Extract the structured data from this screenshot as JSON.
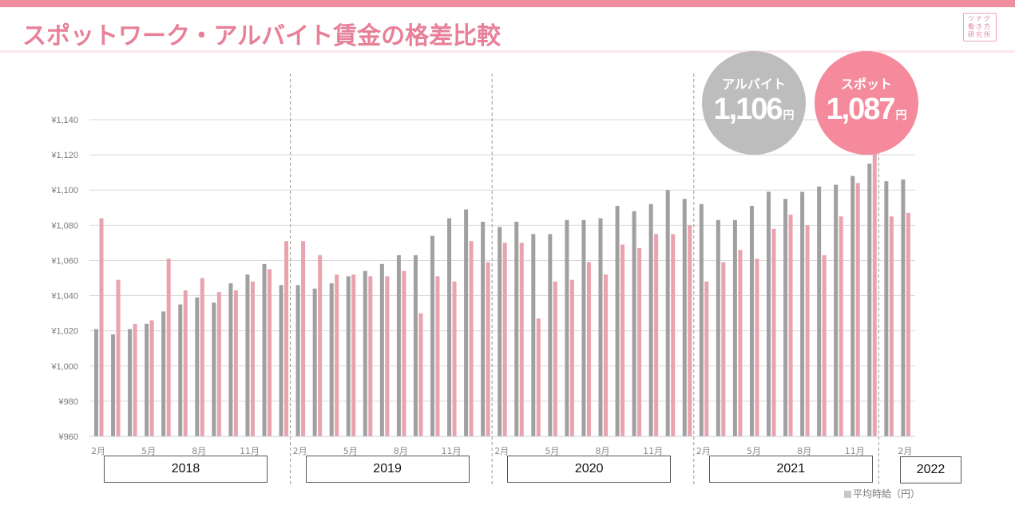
{
  "header": {
    "title": "スポットワーク・アルバイト賃金の格差比較",
    "logo_lines": [
      "ツナグ",
      "働き方",
      "研究所"
    ]
  },
  "colors": {
    "brand_pink": "#f08ea0",
    "arubaito_gray": "#a0a0a0",
    "spot_pink": "#e9a3ae",
    "bubble_gray": "#bdbdbd",
    "bubble_pink": "#f48a9c"
  },
  "callouts": {
    "arubaito": {
      "label": "アルバイト",
      "value": "1,106",
      "unit": "円"
    },
    "spot": {
      "label": "スポット",
      "value": "1,087",
      "unit": "円"
    }
  },
  "legend": {
    "label": "平均時給（円）"
  },
  "chart_data": {
    "type": "bar",
    "title": "スポットワーク・アルバイト賃金の格差比較",
    "xlabel": "",
    "ylabel": "平均時給（円）",
    "ylim": [
      960,
      1140
    ],
    "yticks": [
      "¥960",
      "¥980",
      "¥1,000",
      "¥1,020",
      "¥1,040",
      "¥1,060",
      "¥1,080",
      "¥1,100",
      "¥1,120",
      "¥1,140"
    ],
    "grid": true,
    "year_groups": [
      {
        "label": "2018",
        "count": 12,
        "tick_labels": [
          "2月",
          "5月",
          "8月",
          "11月"
        ]
      },
      {
        "label": "2019",
        "count": 12,
        "tick_labels": [
          "2月",
          "5月",
          "8月",
          "11月"
        ]
      },
      {
        "label": "2020",
        "count": 12,
        "tick_labels": [
          "2月",
          "5月",
          "8月",
          "11月"
        ]
      },
      {
        "label": "2021",
        "count": 11,
        "tick_labels": [
          "2月",
          "5月",
          "8月",
          "11月"
        ]
      },
      {
        "label": "2022",
        "count": 2,
        "tick_labels": [
          "2月"
        ]
      }
    ],
    "categories": [
      "2018-02",
      "2018-03",
      "2018-04",
      "2018-05",
      "2018-06",
      "2018-07",
      "2018-08",
      "2018-09",
      "2018-10",
      "2018-11",
      "2018-12",
      "2019-01",
      "2019-02",
      "2019-03",
      "2019-04",
      "2019-05",
      "2019-06",
      "2019-07",
      "2019-08",
      "2019-09",
      "2019-10",
      "2019-11",
      "2019-12",
      "2020-01",
      "2020-02",
      "2020-03",
      "2020-04",
      "2020-05",
      "2020-06",
      "2020-07",
      "2020-08",
      "2020-09",
      "2020-10",
      "2020-11",
      "2020-12",
      "2021-01",
      "2021-02",
      "2021-03",
      "2021-04",
      "2021-05",
      "2021-06",
      "2021-07",
      "2021-08",
      "2021-09",
      "2021-10",
      "2021-11",
      "2021-12",
      "2022-01",
      "2022-02"
    ],
    "series": [
      {
        "name": "アルバイト",
        "color": "#a0a0a0",
        "values": [
          1021,
          1018,
          1021,
          1024,
          1031,
          1035,
          1039,
          1036,
          1047,
          1052,
          1058,
          1046,
          1046,
          1044,
          1047,
          1051,
          1054,
          1058,
          1063,
          1063,
          1074,
          1084,
          1089,
          1082,
          1079,
          1082,
          1075,
          1075,
          1083,
          1083,
          1084,
          1091,
          1088,
          1092,
          1100,
          1095,
          1092,
          1083,
          1083,
          1091,
          1099,
          1095,
          1099,
          1102,
          1103,
          1108,
          1115,
          1105,
          1106
        ]
      },
      {
        "name": "スポット",
        "color": "#e9a3ae",
        "values": [
          1084,
          1049,
          1024,
          1026,
          1061,
          1043,
          1050,
          1042,
          1043,
          1048,
          1055,
          1071,
          1071,
          1063,
          1052,
          1052,
          1051,
          1051,
          1054,
          1030,
          1051,
          1048,
          1071,
          1059,
          1070,
          1070,
          1027,
          1048,
          1049,
          1059,
          1052,
          1069,
          1067,
          1075,
          1075,
          1080,
          1048,
          1059,
          1066,
          1061,
          1078,
          1086,
          1080,
          1063,
          1085,
          1104,
          1122,
          1085,
          1087
        ]
      }
    ]
  }
}
